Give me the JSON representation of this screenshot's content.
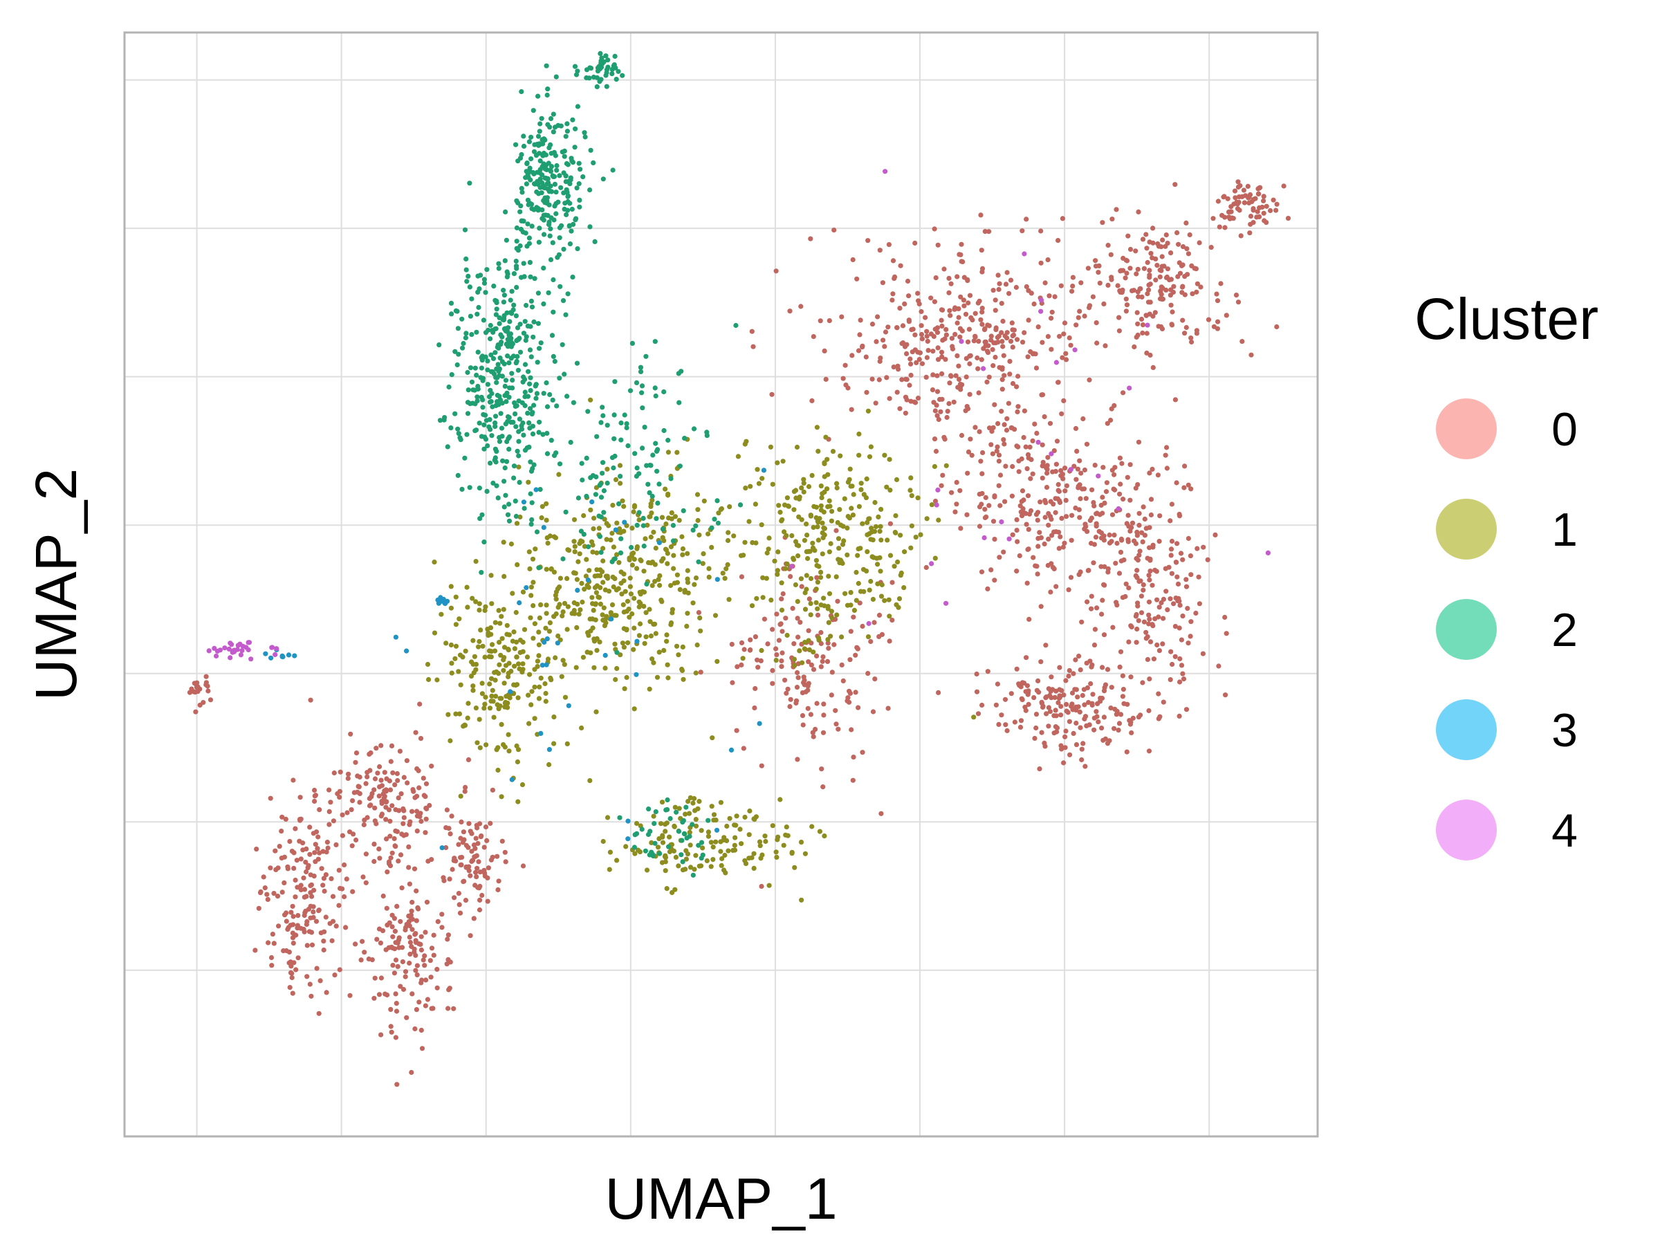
{
  "chart_data": {
    "type": "scatter",
    "title": "",
    "xlabel": "UMAP_1",
    "ylabel": "UMAP_2",
    "xlim": [
      -12.5,
      20.5
    ],
    "ylim": [
      -8.8,
      9.8
    ],
    "x_ticks": [
      -10.5,
      -6.5,
      -2.5,
      1.5,
      5.5,
      9.5,
      13.5,
      17.5
    ],
    "y_ticks": [
      -6.0,
      -3.5,
      -1.0,
      1.5,
      4.0,
      6.5,
      9.0
    ],
    "tick_labels_visible": false,
    "grid": true,
    "point_size": "small",
    "legend": {
      "title": "Cluster",
      "position": "right",
      "entries": [
        {
          "label": "0",
          "color": "#F8766D"
        },
        {
          "label": "1",
          "color": "#A3A500"
        },
        {
          "label": "2",
          "color": "#00BF7D"
        },
        {
          "label": "3",
          "color": "#00B0F6"
        },
        {
          "label": "4",
          "color": "#E76BF3"
        }
      ]
    },
    "point_colors": [
      "#C0665E",
      "#8C8D1E",
      "#1E9E71",
      "#1F93C4",
      "#C35BCC"
    ],
    "series": [
      {
        "name": "0",
        "regions": [
          {
            "cx": 10.5,
            "cy": 4.6,
            "sx": 3.2,
            "sy": 1.4,
            "n": 380
          },
          {
            "cx": 16.0,
            "cy": 5.5,
            "sx": 1.6,
            "sy": 0.9,
            "n": 180
          },
          {
            "cx": 18.6,
            "cy": 6.9,
            "sx": 0.8,
            "sy": 0.3,
            "n": 70
          },
          {
            "cx": 13.0,
            "cy": 1.8,
            "sx": 2.2,
            "sy": 1.2,
            "n": 250
          },
          {
            "cx": 15.8,
            "cy": 0.5,
            "sx": 1.5,
            "sy": 1.8,
            "n": 200
          },
          {
            "cx": 13.5,
            "cy": -1.5,
            "sx": 2.0,
            "sy": 0.7,
            "n": 180
          },
          {
            "cx": 6.5,
            "cy": -0.8,
            "sx": 1.8,
            "sy": 1.5,
            "n": 160
          },
          {
            "cx": -5.5,
            "cy": -3.2,
            "sx": 1.5,
            "sy": 1.0,
            "n": 160
          },
          {
            "cx": -7.5,
            "cy": -4.8,
            "sx": 1.0,
            "sy": 1.3,
            "n": 170
          },
          {
            "cx": -4.8,
            "cy": -5.8,
            "sx": 1.0,
            "sy": 1.2,
            "n": 140
          },
          {
            "cx": -3.0,
            "cy": -4.2,
            "sx": 0.8,
            "sy": 1.0,
            "n": 90
          },
          {
            "cx": -10.4,
            "cy": -1.3,
            "sx": 0.3,
            "sy": 0.25,
            "n": 20
          }
        ]
      },
      {
        "name": "1",
        "regions": [
          {
            "cx": 1.0,
            "cy": 0.5,
            "sx": 2.8,
            "sy": 1.6,
            "n": 400
          },
          {
            "cx": 7.0,
            "cy": 1.2,
            "sx": 2.2,
            "sy": 1.5,
            "n": 300
          },
          {
            "cx": -2.0,
            "cy": -1.0,
            "sx": 1.4,
            "sy": 1.2,
            "n": 200
          },
          {
            "cx": 3.5,
            "cy": -3.8,
            "sx": 2.2,
            "sy": 0.6,
            "n": 150
          }
        ]
      },
      {
        "name": "2",
        "regions": [
          {
            "cx": -2.0,
            "cy": 4.0,
            "sx": 1.2,
            "sy": 1.8,
            "n": 380
          },
          {
            "cx": -0.8,
            "cy": 7.3,
            "sx": 0.9,
            "sy": 1.2,
            "n": 240
          },
          {
            "cx": 0.7,
            "cy": 9.2,
            "sx": 0.4,
            "sy": 0.3,
            "n": 40
          },
          {
            "cx": 1.5,
            "cy": 2.5,
            "sx": 1.8,
            "sy": 1.5,
            "n": 120
          },
          {
            "cx": 2.5,
            "cy": -3.8,
            "sx": 1.0,
            "sy": 0.5,
            "n": 40
          }
        ]
      },
      {
        "name": "3",
        "regions": [
          {
            "cx": -3.7,
            "cy": 0.2,
            "sx": 0.1,
            "sy": 0.06,
            "n": 12
          },
          {
            "cx": 0.5,
            "cy": -0.5,
            "sx": 4.0,
            "sy": 3.0,
            "n": 35
          },
          {
            "cx": -8.3,
            "cy": -0.7,
            "sx": 0.4,
            "sy": 0.1,
            "n": 8
          }
        ]
      },
      {
        "name": "4",
        "regions": [
          {
            "cx": -9.3,
            "cy": -0.6,
            "sx": 0.8,
            "sy": 0.1,
            "n": 30
          },
          {
            "cx": 12.0,
            "cy": 3.0,
            "sx": 4.0,
            "sy": 2.5,
            "n": 25
          }
        ]
      }
    ]
  }
}
